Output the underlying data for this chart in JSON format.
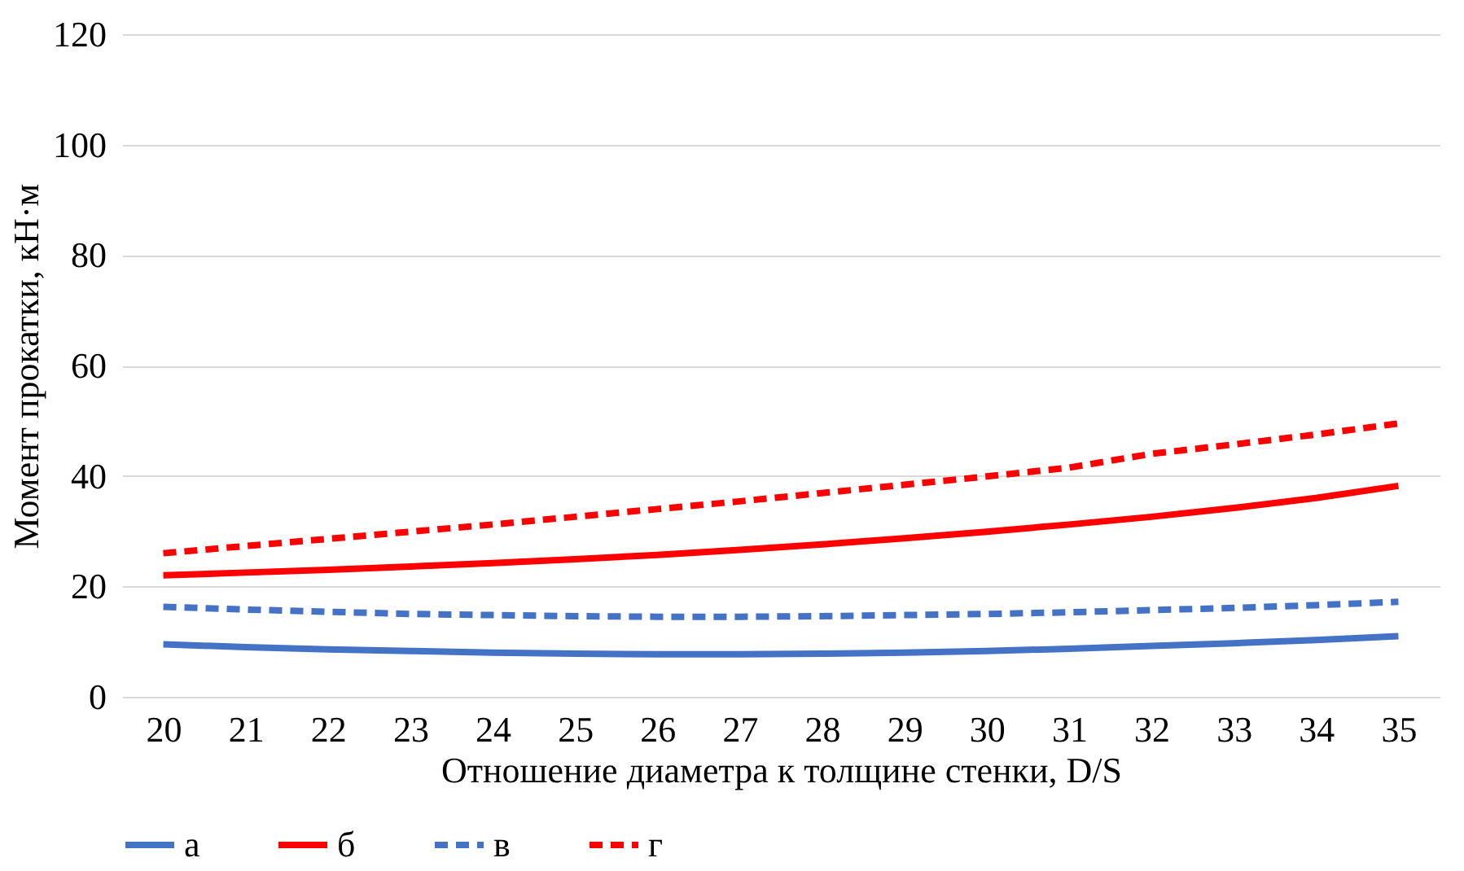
{
  "chart_data": {
    "type": "line",
    "xlabel": "Отношение диаметра к толщине стенки, D/S",
    "ylabel": "Момент прокатки, кН·м",
    "categories": [
      "20",
      "21",
      "22",
      "23",
      "24",
      "25",
      "26",
      "27",
      "28",
      "29",
      "30",
      "31",
      "32",
      "33",
      "34",
      "35"
    ],
    "ylim": [
      0,
      120
    ],
    "yticks": [
      0,
      20,
      40,
      60,
      80,
      100,
      120
    ],
    "grid": "y",
    "legend": "bottom",
    "marker": "none",
    "series": [
      {
        "name": "а",
        "color": "#4472c4",
        "line_style": "solid",
        "values": [
          9.5,
          9.0,
          8.6,
          8.3,
          8.0,
          7.8,
          7.7,
          7.7,
          7.8,
          8.0,
          8.3,
          8.7,
          9.2,
          9.7,
          10.3,
          11.0
        ]
      },
      {
        "name": "б",
        "color": "#ff0000",
        "line_style": "solid",
        "values": [
          22.0,
          22.5,
          23.0,
          23.6,
          24.2,
          24.9,
          25.7,
          26.6,
          27.6,
          28.7,
          29.9,
          31.2,
          32.6,
          34.2,
          36.0,
          38.2
        ]
      },
      {
        "name": "в",
        "color": "#4472c4",
        "line_style": "dashed",
        "values": [
          16.3,
          15.8,
          15.4,
          15.0,
          14.8,
          14.6,
          14.5,
          14.5,
          14.6,
          14.8,
          15.0,
          15.3,
          15.7,
          16.1,
          16.6,
          17.2
        ]
      },
      {
        "name": "г",
        "color": "#ff0000",
        "line_style": "dashed",
        "values": [
          26.0,
          27.3,
          28.6,
          29.9,
          31.2,
          32.6,
          34.0,
          35.4,
          36.9,
          38.4,
          39.9,
          41.5,
          44.0,
          45.7,
          47.5,
          49.5
        ]
      }
    ]
  }
}
